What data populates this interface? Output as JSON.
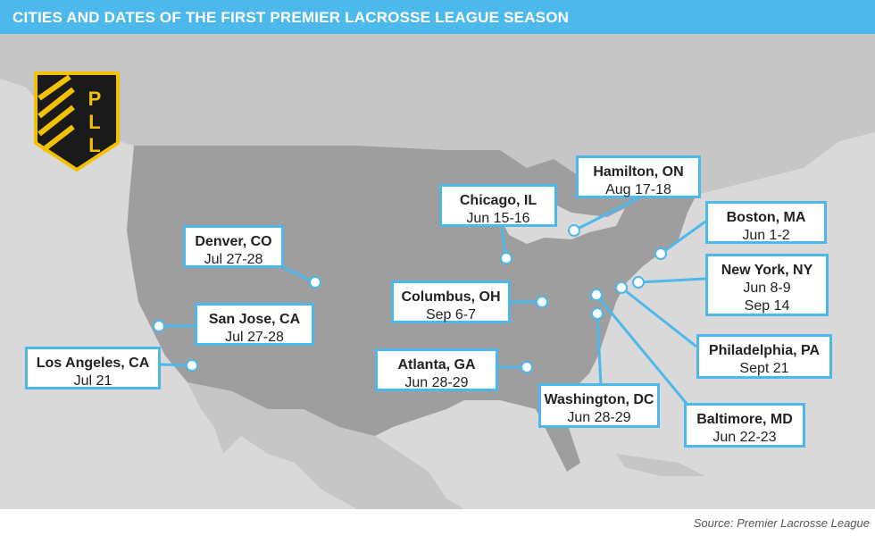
{
  "header": {
    "title": "CITIES AND DATES OF THE FIRST PREMIER LACROSSE LEAGUE SEASON"
  },
  "logo": {
    "letters": "PLL",
    "colors": {
      "black": "#1a1a1a",
      "gold": "#f2c200"
    }
  },
  "map": {
    "colors": {
      "water": "#d9d9d9",
      "us_land": "#9e9e9e",
      "other_land": "#c6c6c6",
      "accent": "#4db8ec"
    }
  },
  "locations": [
    {
      "city": "Los Angeles, CA",
      "dates": [
        "Jul 21"
      ]
    },
    {
      "city": "San Jose, CA",
      "dates": [
        "Jul 27-28"
      ]
    },
    {
      "city": "Denver, CO",
      "dates": [
        "Jul 27-28"
      ]
    },
    {
      "city": "Chicago, IL",
      "dates": [
        "Jun 15-16"
      ]
    },
    {
      "city": "Columbus, OH",
      "dates": [
        "Sep 6-7"
      ]
    },
    {
      "city": "Atlanta, GA",
      "dates": [
        "Jun 28-29"
      ]
    },
    {
      "city": "Hamilton, ON",
      "dates": [
        "Aug 17-18"
      ]
    },
    {
      "city": "Boston, MA",
      "dates": [
        "Jun 1-2"
      ]
    },
    {
      "city": "New York, NY",
      "dates": [
        "Jun 8-9",
        "Sep 14"
      ]
    },
    {
      "city": "Philadelphia, PA",
      "dates": [
        "Sept 21"
      ]
    },
    {
      "city": "Washington, DC",
      "dates": [
        "Jun 28-29"
      ]
    },
    {
      "city": "Baltimore, MD",
      "dates": [
        "Jun 22-23"
      ]
    }
  ],
  "footer": {
    "source": "Source: Premier Lacrosse League"
  }
}
